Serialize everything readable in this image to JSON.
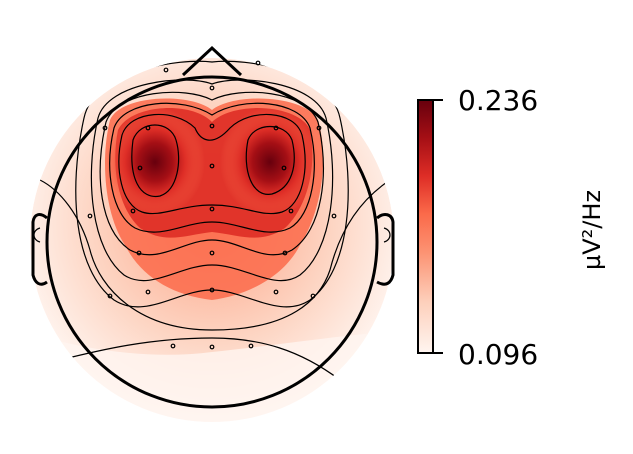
{
  "figure": {
    "type": "eeg-topomap",
    "colormap": [
      "#fff5f0",
      "#fdd0bc",
      "#fc9272",
      "#fb6a4a",
      "#de2d26",
      "#a50f15",
      "#67000d"
    ]
  },
  "colorbar": {
    "max_label": "0.236",
    "min_label": "0.096",
    "unit_label": "µV²/Hz",
    "max_value": 0.236,
    "min_value": 0.096
  }
}
